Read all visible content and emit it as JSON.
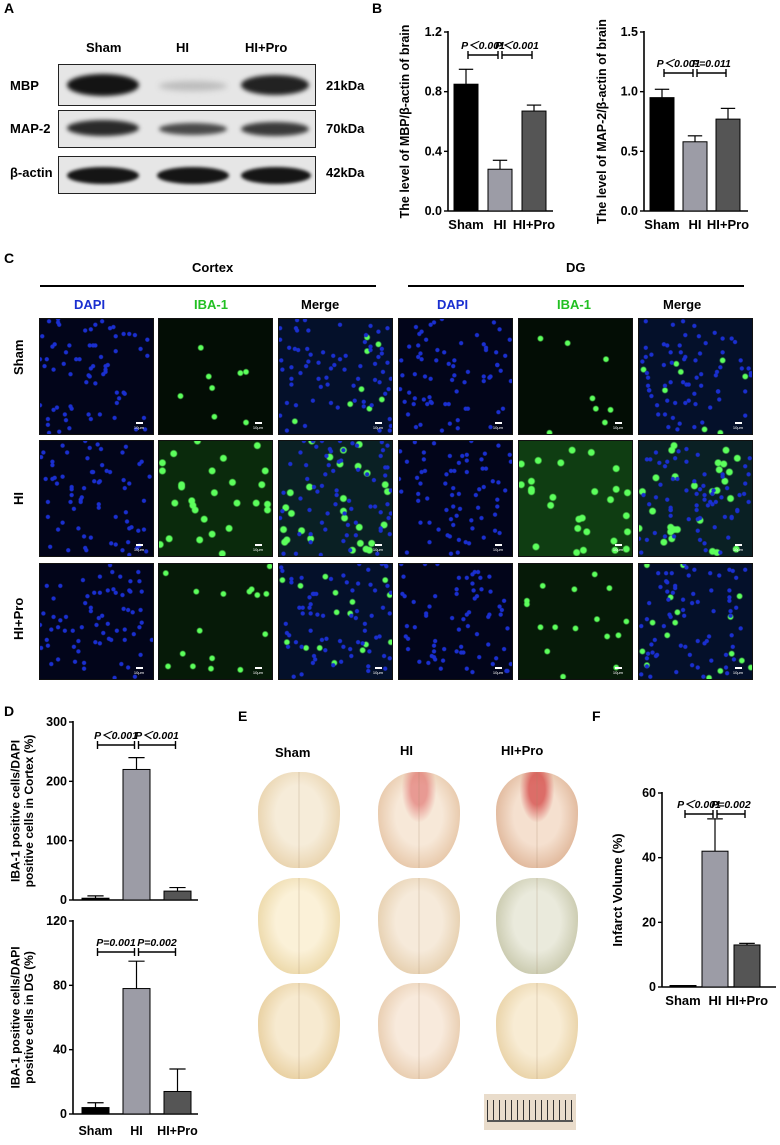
{
  "panel_letters": {
    "a": "A",
    "b": "B",
    "c": "C",
    "d": "D",
    "e": "E",
    "f": "F"
  },
  "panel_a": {
    "groups": [
      "Sham",
      "HI",
      "HI+Pro"
    ],
    "rows": [
      {
        "label": "MBP",
        "kda": "21kDa"
      },
      {
        "label": "MAP-2",
        "kda": "70kDa"
      },
      {
        "label": "β-actin",
        "kda": "42kDa"
      }
    ]
  },
  "panel_c": {
    "regions": [
      "Cortex",
      "DG"
    ],
    "channels": [
      "DAPI",
      "IBA-1",
      "Merge"
    ],
    "rows": [
      "Sham",
      "HI",
      "HI+Pro"
    ],
    "scale_label": "10μm",
    "colors": {
      "dapi": "#1a2fd0",
      "iba": "#22c022",
      "merge": "#222222"
    }
  },
  "panel_e": {
    "groups": [
      "Sham",
      "HI",
      "HI+Pro"
    ]
  },
  "chart_data": [
    {
      "id": "mbp",
      "type": "bar",
      "categories": [
        "Sham",
        "HI",
        "HI+Pro"
      ],
      "values": [
        0.85,
        0.28,
        0.67
      ],
      "errors": [
        0.1,
        0.06,
        0.04
      ],
      "ylabel": "The level of MBP/β-actin of brain",
      "ylim": [
        0,
        1.2
      ],
      "yticks": [
        "0.0",
        "0.4",
        "0.8",
        "1.2"
      ],
      "annotations": [
        "P＜0.001",
        "P＜0.001"
      ],
      "bar_colors": [
        "#000000",
        "#9c9ca6",
        "#555555"
      ]
    },
    {
      "id": "map2",
      "type": "bar",
      "categories": [
        "Sham",
        "HI",
        "HI+Pro"
      ],
      "values": [
        0.95,
        0.58,
        0.77
      ],
      "errors": [
        0.07,
        0.05,
        0.09
      ],
      "ylabel": "The level of MAP-2/β-actin of brain",
      "ylim": [
        0,
        1.5
      ],
      "yticks": [
        "0.0",
        "0.5",
        "1.0",
        "1.5"
      ],
      "annotations": [
        "P＜0.001",
        "P=0.011"
      ],
      "bar_colors": [
        "#000000",
        "#9c9ca6",
        "#555555"
      ]
    },
    {
      "id": "cortex",
      "type": "bar",
      "categories": [
        "Sham",
        "HI",
        "HI+Pro"
      ],
      "values": [
        3,
        220,
        15
      ],
      "errors": [
        4,
        20,
        6
      ],
      "ylabel": "IBA-1 positive cells/DAPI positive cells in Cortex (%)",
      "ylim": [
        0,
        300
      ],
      "yticks": [
        "0",
        "100",
        "200",
        "300"
      ],
      "annotations": [
        "P＜0.001",
        "P＜0.001"
      ],
      "bar_colors": [
        "#000000",
        "#9c9ca6",
        "#555555"
      ]
    },
    {
      "id": "dg",
      "type": "bar",
      "categories": [
        "Sham",
        "HI",
        "HI+Pro"
      ],
      "values": [
        4,
        78,
        14
      ],
      "errors": [
        3,
        17,
        14
      ],
      "ylabel": "IBA-1 positive cells/DAPI positive cells in DG (%)",
      "ylim": [
        0,
        120
      ],
      "yticks": [
        "0",
        "40",
        "80",
        "120"
      ],
      "annotations": [
        "P=0.001",
        "P=0.002"
      ],
      "bar_colors": [
        "#000000",
        "#9c9ca6",
        "#555555"
      ]
    },
    {
      "id": "infarct",
      "type": "bar",
      "categories": [
        "Sham",
        "HI",
        "HI+Pro"
      ],
      "values": [
        0,
        42,
        13
      ],
      "errors": [
        0,
        10,
        0.5
      ],
      "ylabel": "Infarct Volume (%)",
      "ylim": [
        0,
        60
      ],
      "yticks": [
        "0",
        "20",
        "40",
        "60"
      ],
      "annotations": [
        "P＜0.001",
        "P=0.002"
      ],
      "bar_colors": [
        "#000000",
        "#9c9ca6",
        "#555555"
      ]
    }
  ]
}
